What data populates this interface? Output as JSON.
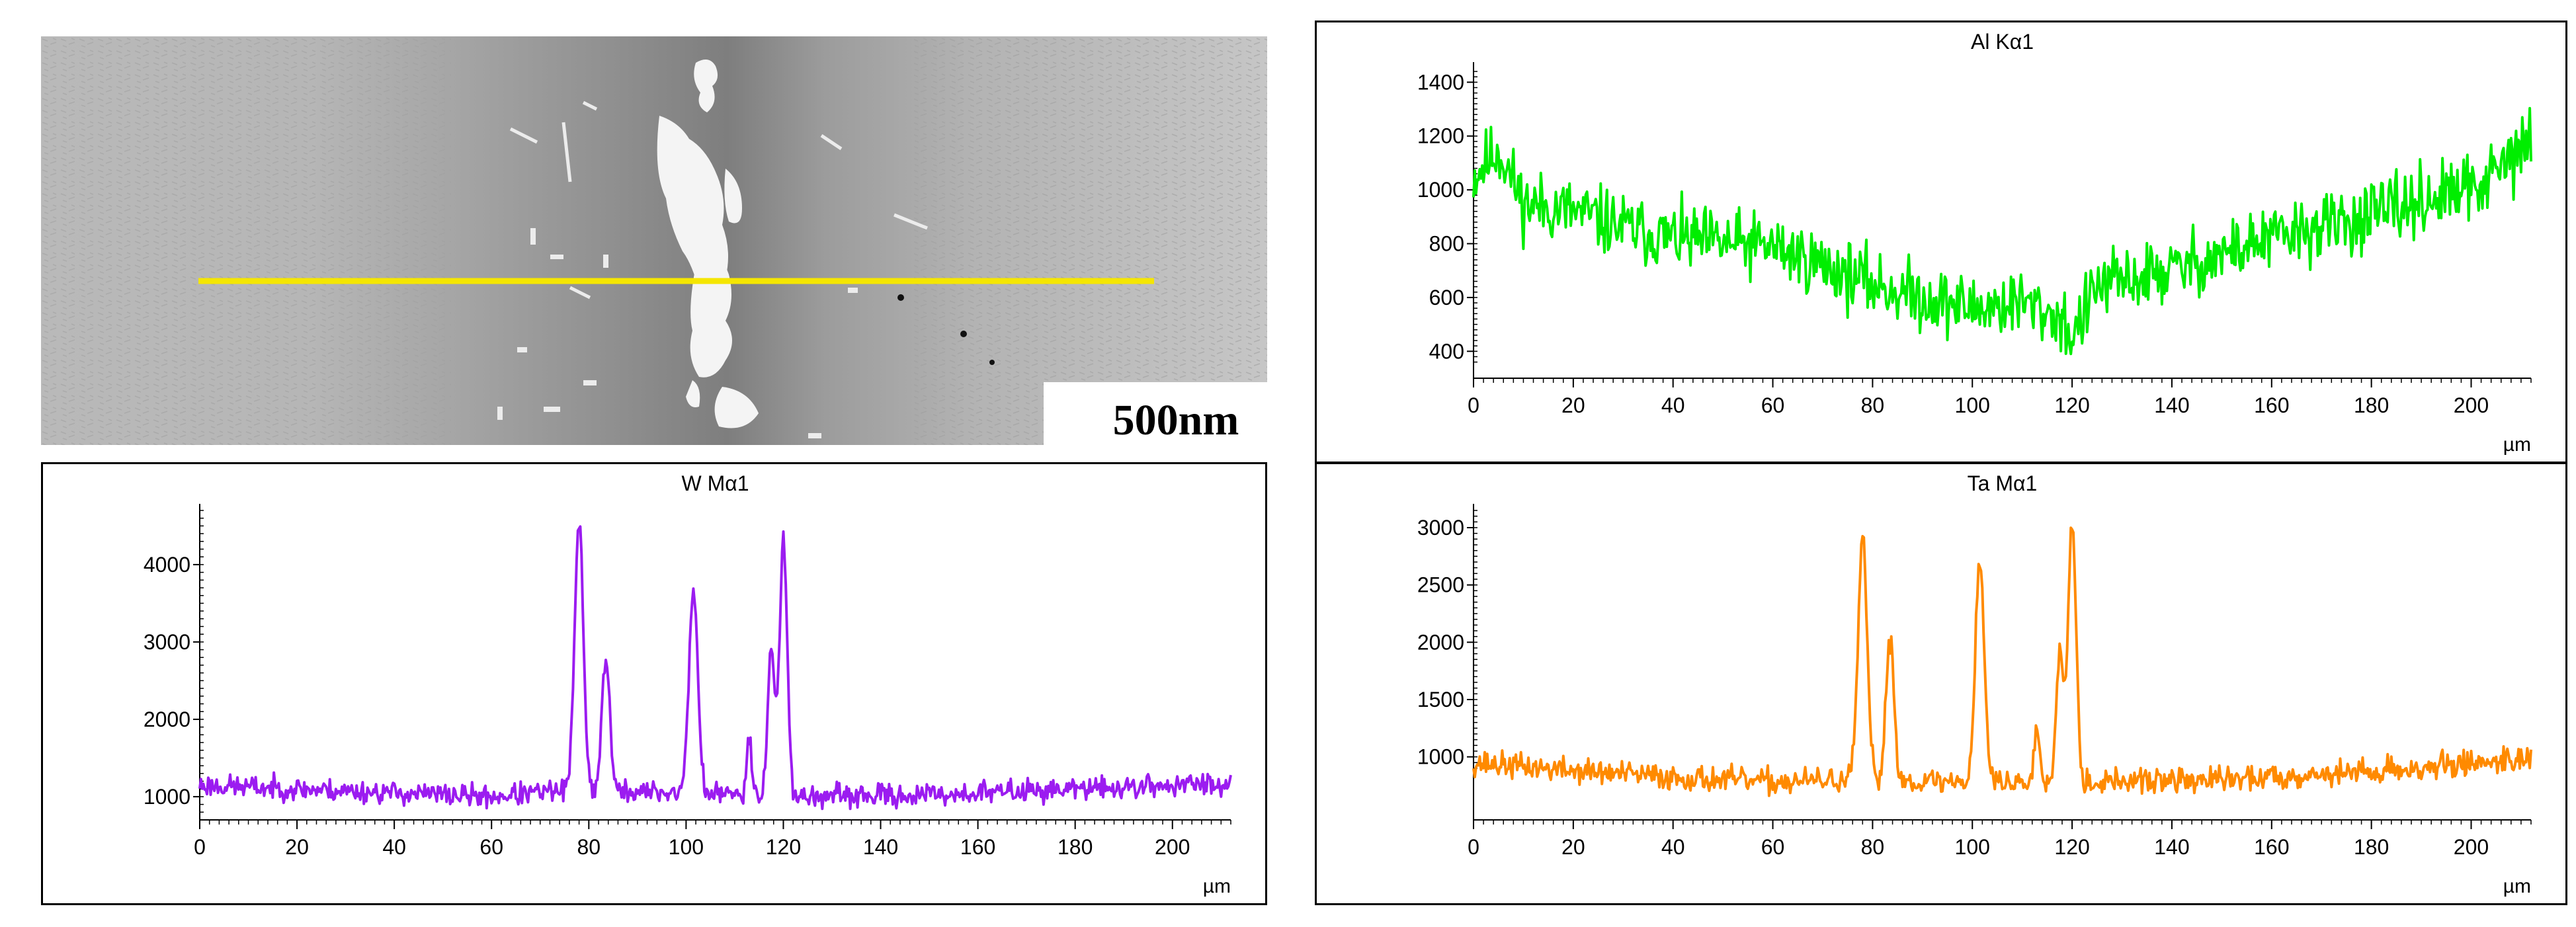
{
  "micrograph": {
    "scale_label": "500nm",
    "line_color": "#f5e600"
  },
  "chart_data": [
    {
      "id": "al",
      "type": "line",
      "title": "Al Kα1",
      "xlabel": "µm",
      "ylabel": "",
      "color": "#00ee00",
      "xlim": [
        0,
        212
      ],
      "ylim": [
        300,
        1450
      ],
      "xticks": [
        0,
        20,
        40,
        60,
        80,
        100,
        120,
        140,
        160,
        180,
        200
      ],
      "yticks": [
        400,
        600,
        800,
        1000,
        1200,
        1400
      ],
      "noise": 95,
      "seed": 11,
      "baseline": [
        [
          0,
          1050
        ],
        [
          5,
          1150
        ],
        [
          10,
          950
        ],
        [
          20,
          920
        ],
        [
          30,
          860
        ],
        [
          40,
          820
        ],
        [
          50,
          800
        ],
        [
          60,
          790
        ],
        [
          70,
          720
        ],
        [
          80,
          650
        ],
        [
          90,
          600
        ],
        [
          100,
          560
        ],
        [
          110,
          580
        ],
        [
          118,
          520
        ],
        [
          120,
          450
        ],
        [
          125,
          640
        ],
        [
          140,
          700
        ],
        [
          150,
          760
        ],
        [
          160,
          820
        ],
        [
          170,
          860
        ],
        [
          180,
          900
        ],
        [
          190,
          960
        ],
        [
          200,
          1000
        ],
        [
          205,
          1060
        ],
        [
          210,
          1150
        ],
        [
          212,
          1200
        ]
      ],
      "peaks": []
    },
    {
      "id": "w",
      "type": "line",
      "title": "W Mα1",
      "xlabel": "µm",
      "ylabel": "",
      "color": "#9b1cf0",
      "xlim": [
        0,
        212
      ],
      "ylim": [
        700,
        4700
      ],
      "xticks": [
        0,
        20,
        40,
        60,
        80,
        100,
        120,
        140,
        160,
        180,
        200
      ],
      "yticks": [
        1000,
        2000,
        3000,
        4000
      ],
      "noise": 110,
      "seed": 23,
      "baseline": [
        [
          0,
          1150
        ],
        [
          20,
          1100
        ],
        [
          40,
          1050
        ],
        [
          60,
          1000
        ],
        [
          75,
          1080
        ],
        [
          100,
          1050
        ],
        [
          125,
          1000
        ],
        [
          150,
          1020
        ],
        [
          170,
          1080
        ],
        [
          190,
          1120
        ],
        [
          212,
          1180
        ]
      ],
      "peaks": [
        [
          78,
          3450,
          0.9
        ],
        [
          83.5,
          1750,
          0.8
        ],
        [
          101.5,
          2650,
          0.9
        ],
        [
          113,
          800,
          0.5
        ],
        [
          117.5,
          1900,
          0.7
        ],
        [
          120,
          3250,
          0.8
        ]
      ]
    },
    {
      "id": "ta",
      "type": "line",
      "title": "Ta Mα1",
      "xlabel": "µm",
      "ylabel": "",
      "color": "#ff8a00",
      "xlim": [
        0,
        212
      ],
      "ylim": [
        450,
        3150
      ],
      "xticks": [
        0,
        20,
        40,
        60,
        80,
        100,
        120,
        140,
        160,
        180,
        200
      ],
      "yticks": [
        1000,
        1500,
        2000,
        2500,
        3000
      ],
      "noise": 85,
      "seed": 37,
      "baseline": [
        [
          0,
          950
        ],
        [
          20,
          880
        ],
        [
          40,
          820
        ],
        [
          60,
          780
        ],
        [
          75,
          800
        ],
        [
          100,
          780
        ],
        [
          125,
          780
        ],
        [
          150,
          800
        ],
        [
          170,
          850
        ],
        [
          190,
          900
        ],
        [
          212,
          1000
        ]
      ],
      "peaks": [
        [
          78,
          2080,
          0.9
        ],
        [
          83.5,
          1250,
          0.8
        ],
        [
          101.5,
          1930,
          0.9
        ],
        [
          113,
          500,
          0.5
        ],
        [
          117.5,
          1200,
          0.7
        ],
        [
          120,
          2300,
          0.8
        ]
      ]
    }
  ]
}
